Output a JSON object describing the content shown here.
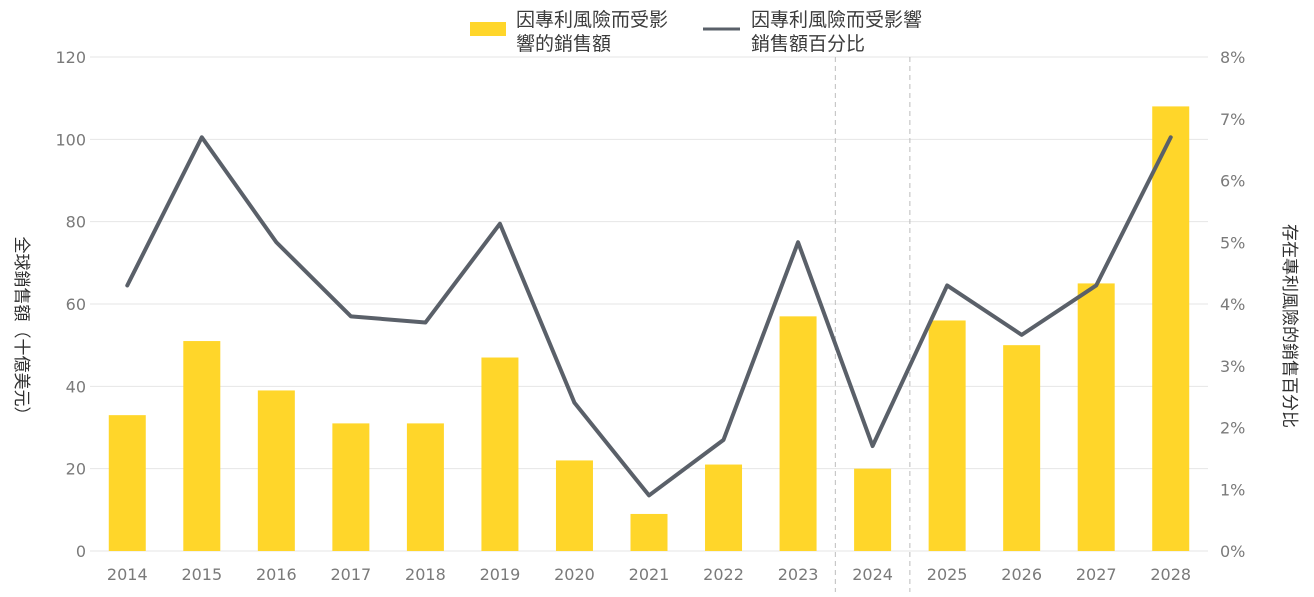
{
  "chart_data": {
    "type": "bar",
    "categories": [
      "2014",
      "2015",
      "2016",
      "2017",
      "2018",
      "2019",
      "2020",
      "2021",
      "2022",
      "2023",
      "2024",
      "2025",
      "2026",
      "2027",
      "2028"
    ],
    "series": [
      {
        "name": "因專利風險而受影響的銷售額",
        "type": "bar",
        "axis": "left",
        "color": "#FFD62A",
        "values": [
          33,
          51,
          39,
          31,
          31,
          47,
          22,
          9,
          21,
          57,
          20,
          56,
          50,
          65,
          108
        ]
      },
      {
        "name": "因專利風險而受影響銷售額百分比",
        "type": "line",
        "axis": "right",
        "color": "#5a6069",
        "values": [
          4.3,
          6.7,
          5.0,
          3.8,
          3.7,
          5.3,
          2.4,
          0.9,
          1.8,
          5.0,
          1.7,
          4.3,
          3.5,
          4.3,
          6.7
        ]
      }
    ],
    "ylabel": "全球銷售額（十億美元）",
    "y2label": "存在專利風險的銷售百分比",
    "ylim": [
      0,
      120
    ],
    "yticks": [
      "0",
      "20",
      "40",
      "60",
      "80",
      "100",
      "120"
    ],
    "y2lim": [
      0,
      8
    ],
    "y2ticks": [
      "0%",
      "1%",
      "2%",
      "3%",
      "4%",
      "5%",
      "6%",
      "7%",
      "8%"
    ],
    "grid": true,
    "dashed_separators_after": [
      "2023",
      "2024"
    ],
    "legend_position": "top-center",
    "legend": [
      {
        "line1": "因專利風險而受影",
        "line2": "響的銷售額"
      },
      {
        "line1": "因專利風險而受影響",
        "line2": "銷售額百分比"
      }
    ]
  }
}
